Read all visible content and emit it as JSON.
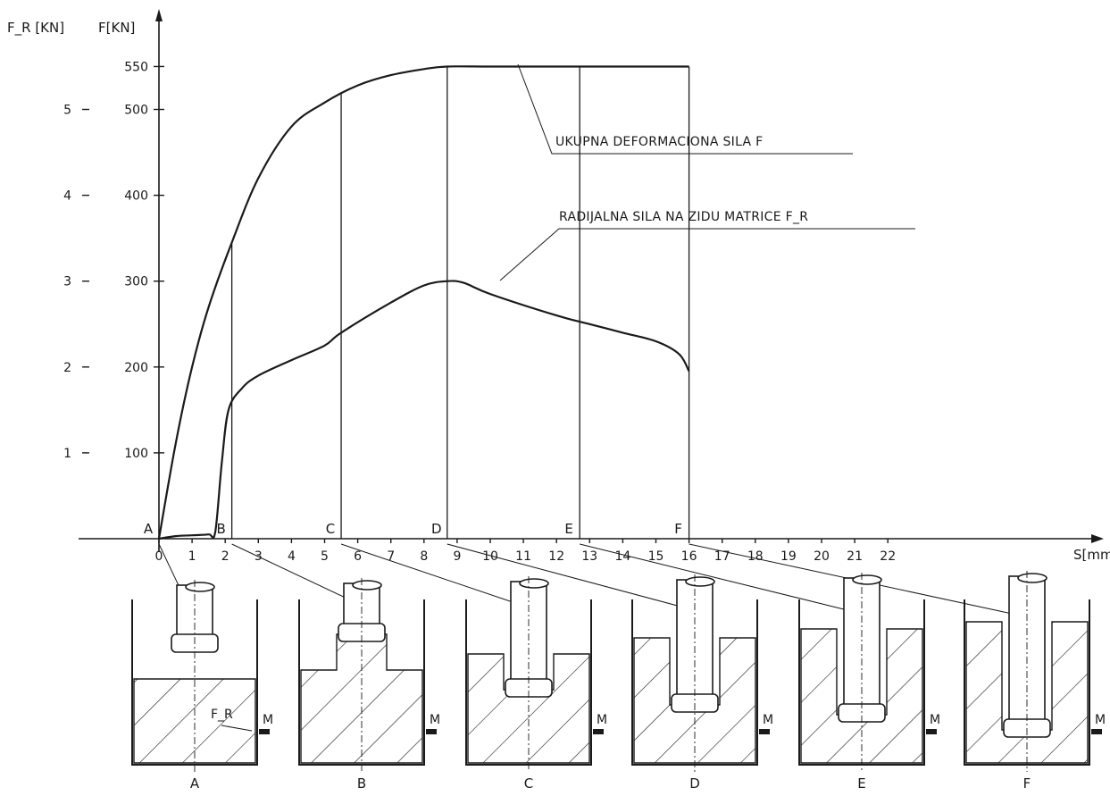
{
  "chart_data": {
    "type": "line",
    "x_axis": {
      "label": "S[mm]",
      "range": [
        0,
        22.5
      ],
      "ticks": [
        "0",
        "1",
        "2",
        "3",
        "4",
        "5",
        "6",
        "7",
        "8",
        "9",
        "10",
        "11",
        "12",
        "13",
        "14",
        "15",
        "16",
        "17",
        "18",
        "19",
        "20",
        "21",
        "22"
      ]
    },
    "y_axis_left": {
      "label": "F_R [KN]",
      "range": [
        0,
        5.5
      ],
      "ticks": [
        "1",
        "2",
        "3",
        "4",
        "5"
      ]
    },
    "y_axis_right": {
      "label": "F[KN]",
      "range": [
        0,
        550
      ],
      "ticks": [
        "100",
        "200",
        "300",
        "400",
        "500",
        "550"
      ]
    },
    "series": [
      {
        "name": "UKUPNA DEFORMACIONA SILA F",
        "axis": "F",
        "x": [
          0,
          0.5,
          1,
          1.5,
          2.2,
          3,
          4,
          5,
          6,
          7,
          8,
          8.7,
          10,
          12,
          14,
          16
        ],
        "y": [
          0,
          110,
          200,
          270,
          345,
          420,
          480,
          508,
          528,
          540,
          547,
          550,
          550,
          550,
          550,
          550
        ]
      },
      {
        "name": "RADIJALNA SILA NA ZIDU MATRICE F_R",
        "axis": "F_R",
        "x": [
          0,
          0.5,
          1,
          1.5,
          1.7,
          1.9,
          2.1,
          2.5,
          3,
          4,
          5,
          5.5,
          7,
          8,
          8.7,
          9.2,
          10,
          12,
          13,
          14,
          15,
          15.7,
          16
        ],
        "y": [
          0,
          0.03,
          0.04,
          0.05,
          0.08,
          0.9,
          1.5,
          1.75,
          1.9,
          2.08,
          2.25,
          2.4,
          2.75,
          2.95,
          3.0,
          2.98,
          2.85,
          2.6,
          2.5,
          2.4,
          2.3,
          2.15,
          1.95
        ]
      }
    ],
    "phase_markers": [
      {
        "label": "A",
        "s": 0
      },
      {
        "label": "B",
        "s": 2.2
      },
      {
        "label": "C",
        "s": 5.5
      },
      {
        "label": "D",
        "s": 8.7
      },
      {
        "label": "E",
        "s": 12.7
      },
      {
        "label": "F",
        "s": 16
      }
    ],
    "annotations": [
      "UKUPNA DEFORMACIONA SILA F",
      "RADIJALNA SILA NA ZIDU MATRICE F_R"
    ],
    "grid": false
  },
  "schematics": {
    "stages": [
      "A",
      "B",
      "C",
      "D",
      "E",
      "F"
    ],
    "force_label": "F_R",
    "marker_label": "M"
  }
}
